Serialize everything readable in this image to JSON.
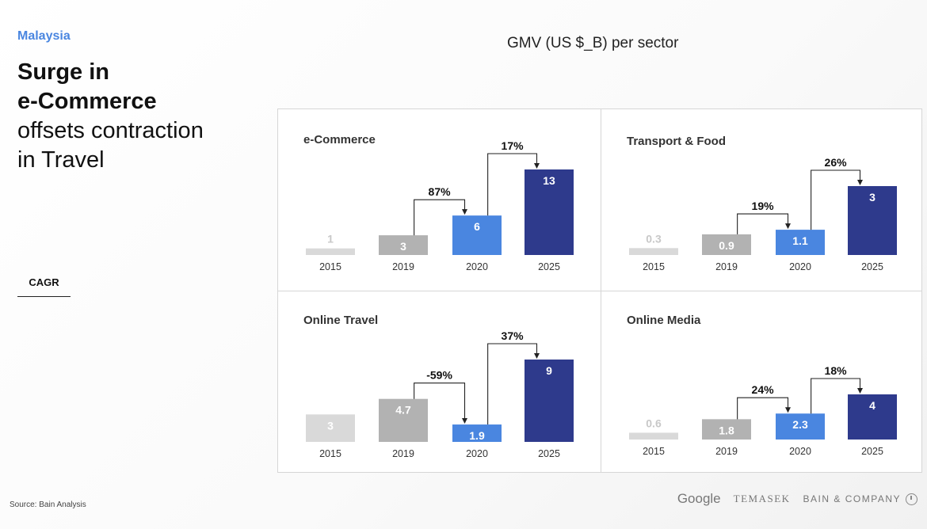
{
  "header": {
    "country": "Malaysia",
    "headline_bold_1": "Surge in",
    "headline_bold_2": "e-Commerce",
    "headline_normal_1": "offsets contraction",
    "headline_normal_2": "in Travel"
  },
  "cagr_label": "CAGR",
  "chart_title": "GMV (US $_B) per sector",
  "source": "Source: Bain Analysis",
  "logos": {
    "google": "Google",
    "temasek": "TEMASEK",
    "bain": "BAIN & COMPANY"
  },
  "colors": {
    "y2015": "#d9d9d9",
    "y2019": "#b2b2b2",
    "y2020": "#4a86e0",
    "y2025": "#2e3a8c",
    "accent": "#4a86e0"
  },
  "chart_data": [
    {
      "type": "bar",
      "title": "e-Commerce",
      "categories": [
        "2015",
        "2019",
        "2020",
        "2025"
      ],
      "values": [
        1,
        3,
        6,
        13
      ],
      "value_labels": [
        "1",
        "3",
        "6",
        "13"
      ],
      "cagr": [
        "87%",
        "17%"
      ]
    },
    {
      "type": "bar",
      "title": "Transport & Food",
      "categories": [
        "2015",
        "2019",
        "2020",
        "2025"
      ],
      "values": [
        0.3,
        0.9,
        1.1,
        3
      ],
      "value_labels": [
        "0.3",
        "0.9",
        "1.1",
        "3"
      ],
      "cagr": [
        "19%",
        "26%"
      ]
    },
    {
      "type": "bar",
      "title": "Online Travel",
      "categories": [
        "2015",
        "2019",
        "2020",
        "2025"
      ],
      "values": [
        3,
        4.7,
        1.9,
        9
      ],
      "value_labels": [
        "3",
        "4.7",
        "1.9",
        "9"
      ],
      "cagr": [
        "-59%",
        "37%"
      ]
    },
    {
      "type": "bar",
      "title": "Online Media",
      "categories": [
        "2015",
        "2019",
        "2020",
        "2025"
      ],
      "values": [
        0.6,
        1.8,
        2.3,
        4
      ],
      "value_labels": [
        "0.6",
        "1.8",
        "2.3",
        "4"
      ],
      "cagr": [
        "24%",
        "18%"
      ]
    }
  ]
}
